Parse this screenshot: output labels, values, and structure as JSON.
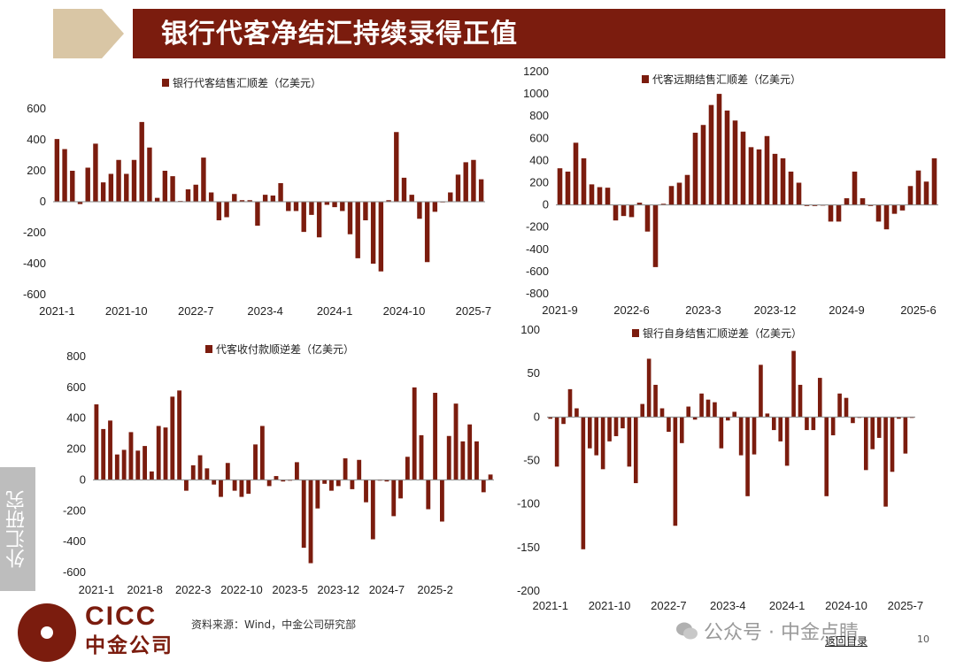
{
  "page": {
    "title": "银行代客净结汇持续录得正值",
    "side_tab": "外汇研究",
    "source": "资料来源：Wind，中金公司研究部",
    "watermark": "公众号 · 中金点睛",
    "nav_link": "返回目录",
    "page_number": "10",
    "logo_en": "CICC",
    "logo_cn": "中金公司"
  },
  "colors": {
    "bar": "#7b1c0e",
    "header": "#7b1c0e",
    "header_accent": "#d9c6a5"
  },
  "chart_data": [
    {
      "type": "bar",
      "legend": "银行代客结售汇顺差（亿美元）",
      "ylim": [
        -600,
        600
      ],
      "yticks": [
        600,
        400,
        200,
        0,
        -200,
        -400,
        -600
      ],
      "xticks": [
        "2021-1",
        "2021-10",
        "2022-7",
        "2023-4",
        "2024-1",
        "2024-10",
        "2025-7"
      ],
      "xtick_index": [
        0,
        9,
        18,
        27,
        36,
        45,
        54
      ],
      "values": [
        405,
        340,
        200,
        -15,
        220,
        375,
        125,
        180,
        270,
        180,
        270,
        515,
        350,
        25,
        200,
        165,
        5,
        80,
        110,
        285,
        60,
        -120,
        -100,
        50,
        10,
        10,
        -155,
        45,
        40,
        120,
        -60,
        -60,
        -195,
        -85,
        -230,
        -20,
        -35,
        -60,
        -210,
        -365,
        -120,
        -400,
        -450,
        10,
        450,
        155,
        45,
        -110,
        -390,
        -65,
        0,
        60,
        175,
        255,
        270,
        145
      ]
    },
    {
      "type": "bar",
      "legend": "代客远期结售汇顺差（亿美元）",
      "ylim": [
        -800,
        1200
      ],
      "yticks": [
        1200,
        1000,
        800,
        600,
        400,
        200,
        0,
        -200,
        -400,
        -600,
        -800
      ],
      "xticks": [
        "2021-9",
        "2022-6",
        "2023-3",
        "2023-12",
        "2024-9",
        "2025-6"
      ],
      "xtick_index": [
        0,
        9,
        18,
        27,
        36,
        45
      ],
      "values": [
        330,
        300,
        560,
        420,
        185,
        160,
        155,
        -140,
        -100,
        -110,
        20,
        -240,
        -560,
        10,
        170,
        200,
        270,
        650,
        720,
        900,
        1000,
        850,
        760,
        660,
        520,
        500,
        620,
        460,
        420,
        300,
        200,
        -10,
        -10,
        0,
        -150,
        -150,
        60,
        300,
        60,
        -10,
        -150,
        -220,
        -80,
        -50,
        170,
        310,
        210,
        420
      ]
    },
    {
      "type": "bar",
      "legend": "代客收付款顺逆差（亿美元）",
      "ylim": [
        -600,
        800
      ],
      "yticks": [
        800,
        600,
        400,
        200,
        0,
        -200,
        -400,
        -600
      ],
      "xticks": [
        "2021-1",
        "2021-8",
        "2022-3",
        "2022-10",
        "2023-5",
        "2023-12",
        "2024-7",
        "2025-2"
      ],
      "xtick_index": [
        0,
        7,
        14,
        21,
        28,
        35,
        42,
        49
      ],
      "values": [
        490,
        330,
        385,
        165,
        195,
        310,
        190,
        220,
        55,
        350,
        340,
        540,
        580,
        -70,
        95,
        160,
        75,
        -30,
        -110,
        110,
        -70,
        -110,
        -90,
        230,
        350,
        -40,
        25,
        -10,
        -5,
        115,
        -440,
        -540,
        -185,
        -25,
        -70,
        -40,
        140,
        -60,
        130,
        -145,
        -385,
        0,
        -10,
        -235,
        -120,
        150,
        600,
        290,
        -190,
        565,
        -270,
        285,
        495,
        250,
        360,
        250,
        -80,
        35
      ]
    },
    {
      "type": "bar",
      "legend": "银行自身结售汇顺逆差（亿美元）",
      "ylim": [
        -200,
        100
      ],
      "yticks": [
        100,
        50,
        0,
        -50,
        -100,
        -150,
        -200
      ],
      "xticks": [
        "2021-1",
        "2021-10",
        "2022-7",
        "2023-4",
        "2024-1",
        "2024-10",
        "2025-7"
      ],
      "xtick_index": [
        0,
        9,
        18,
        27,
        36,
        45,
        54
      ],
      "values": [
        -2,
        -57,
        -8,
        32,
        10,
        -152,
        -36,
        -44,
        -60,
        -28,
        -22,
        -13,
        -57,
        -76,
        15,
        67,
        37,
        10,
        -17,
        -125,
        -30,
        12,
        -3,
        27,
        20,
        17,
        -36,
        -4,
        6,
        -44,
        -91,
        -43,
        60,
        4,
        -15,
        -28,
        -56,
        76,
        37,
        -15,
        -15,
        45,
        -91,
        -21,
        27,
        22,
        -7,
        -1,
        -61,
        -37,
        -24,
        -103,
        -63,
        -2,
        -42,
        -1
      ]
    }
  ]
}
